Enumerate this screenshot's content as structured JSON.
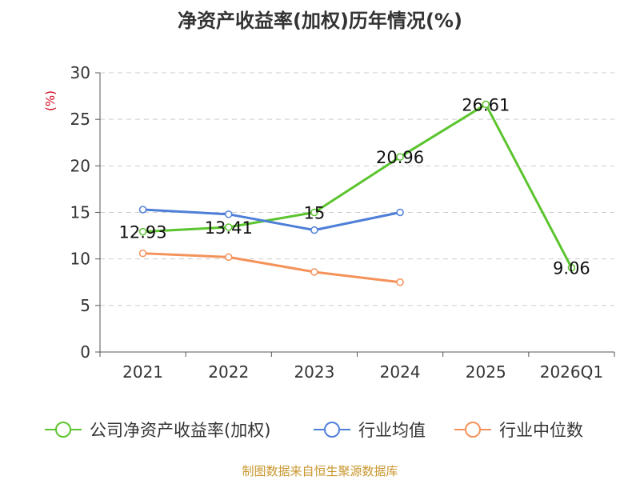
{
  "title": "净资产收益率(加权)历年情况(%)",
  "source": "制图数据来自恒生聚源数据库",
  "chart_data": {
    "type": "line",
    "categories": [
      "2021",
      "2022",
      "2023",
      "2024",
      "2025",
      "2026Q1"
    ],
    "ylabel": "(%)",
    "ylim": [
      0,
      30
    ],
    "yticks": [
      0,
      5,
      10,
      15,
      20,
      25,
      30
    ],
    "grid": true,
    "legend_position": "bottom",
    "series": [
      {
        "name": "公司净资产收益率(加权)",
        "color": "#5bc42e",
        "values": [
          12.93,
          13.41,
          15,
          20.96,
          26.61,
          9.06
        ],
        "labels": [
          "12.93",
          "13.41",
          "15",
          "20.96",
          "26.61",
          "9.06"
        ]
      },
      {
        "name": "行业均值",
        "color": "#4e7fd8",
        "values": [
          15.3,
          14.8,
          13.1,
          15.0,
          null,
          null
        ]
      },
      {
        "name": "行业中位数",
        "color": "#f4925a",
        "values": [
          10.6,
          10.2,
          8.6,
          7.5,
          null,
          null
        ]
      }
    ]
  },
  "colors": {
    "axis": "#555555",
    "grid": "#cccccc",
    "ylabel": "#d0021b",
    "text": "#333333"
  }
}
